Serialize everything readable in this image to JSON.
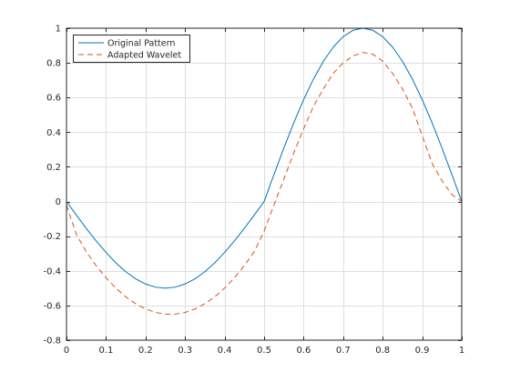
{
  "chart_data": {
    "type": "line",
    "title": "",
    "xlabel": "",
    "ylabel": "",
    "xlim": [
      0,
      1
    ],
    "ylim": [
      -0.8,
      1
    ],
    "grid": true,
    "legend_position": "top-left",
    "x_ticks": [
      0,
      0.1,
      0.2,
      0.3,
      0.4,
      0.5,
      0.6,
      0.7,
      0.8,
      0.9,
      1
    ],
    "x_tick_labels": [
      "0",
      "0.1",
      "0.2",
      "0.3",
      "0.4",
      "0.5",
      "0.6",
      "0.7",
      "0.8",
      "0.9",
      "1"
    ],
    "y_ticks": [
      -0.8,
      -0.6,
      -0.4,
      -0.2,
      0,
      0.2,
      0.4,
      0.6,
      0.8,
      1
    ],
    "y_tick_labels": [
      "-0.8",
      "-0.6",
      "-0.4",
      "-0.2",
      "0",
      "0.2",
      "0.4",
      "0.6",
      "0.8",
      "1"
    ],
    "series": [
      {
        "name": "Original Pattern",
        "color": "#0072BD",
        "style": "solid",
        "x": [
          0,
          0.025,
          0.05,
          0.075,
          0.1,
          0.125,
          0.15,
          0.175,
          0.2,
          0.225,
          0.25,
          0.275,
          0.3,
          0.325,
          0.35,
          0.375,
          0.4,
          0.425,
          0.45,
          0.475,
          0.5,
          0.525,
          0.55,
          0.575,
          0.6,
          0.625,
          0.65,
          0.675,
          0.7,
          0.725,
          0.75,
          0.775,
          0.8,
          0.825,
          0.85,
          0.875,
          0.9,
          0.925,
          0.95,
          0.975,
          1
        ],
        "y": [
          0,
          -0.078,
          -0.155,
          -0.227,
          -0.294,
          -0.354,
          -0.405,
          -0.446,
          -0.476,
          -0.494,
          -0.5,
          -0.494,
          -0.476,
          -0.446,
          -0.405,
          -0.354,
          -0.294,
          -0.227,
          -0.155,
          -0.078,
          0,
          0.156,
          0.309,
          0.454,
          0.588,
          0.707,
          0.809,
          0.891,
          0.951,
          0.988,
          1,
          0.988,
          0.951,
          0.891,
          0.809,
          0.707,
          0.588,
          0.454,
          0.309,
          0.156,
          0
        ]
      },
      {
        "name": "Adapted Wavelet",
        "color": "#D95319",
        "style": "dashed",
        "x": [
          0,
          0.025,
          0.05,
          0.075,
          0.1,
          0.125,
          0.15,
          0.175,
          0.2,
          0.225,
          0.25,
          0.275,
          0.3,
          0.325,
          0.35,
          0.375,
          0.4,
          0.425,
          0.45,
          0.475,
          0.5,
          0.525,
          0.55,
          0.575,
          0.6,
          0.625,
          0.65,
          0.675,
          0.7,
          0.725,
          0.75,
          0.775,
          0.8,
          0.825,
          0.85,
          0.875,
          0.9,
          0.925,
          0.95,
          0.975,
          1
        ],
        "y": [
          -0.02,
          -0.19,
          -0.29,
          -0.37,
          -0.44,
          -0.5,
          -0.55,
          -0.59,
          -0.62,
          -0.64,
          -0.65,
          -0.65,
          -0.64,
          -0.62,
          -0.59,
          -0.55,
          -0.5,
          -0.44,
          -0.37,
          -0.29,
          -0.17,
          -0.02,
          0.13,
          0.28,
          0.42,
          0.55,
          0.65,
          0.74,
          0.8,
          0.84,
          0.86,
          0.85,
          0.81,
          0.74,
          0.65,
          0.54,
          0.38,
          0.22,
          0.12,
          0.04,
          0
        ]
      }
    ]
  }
}
